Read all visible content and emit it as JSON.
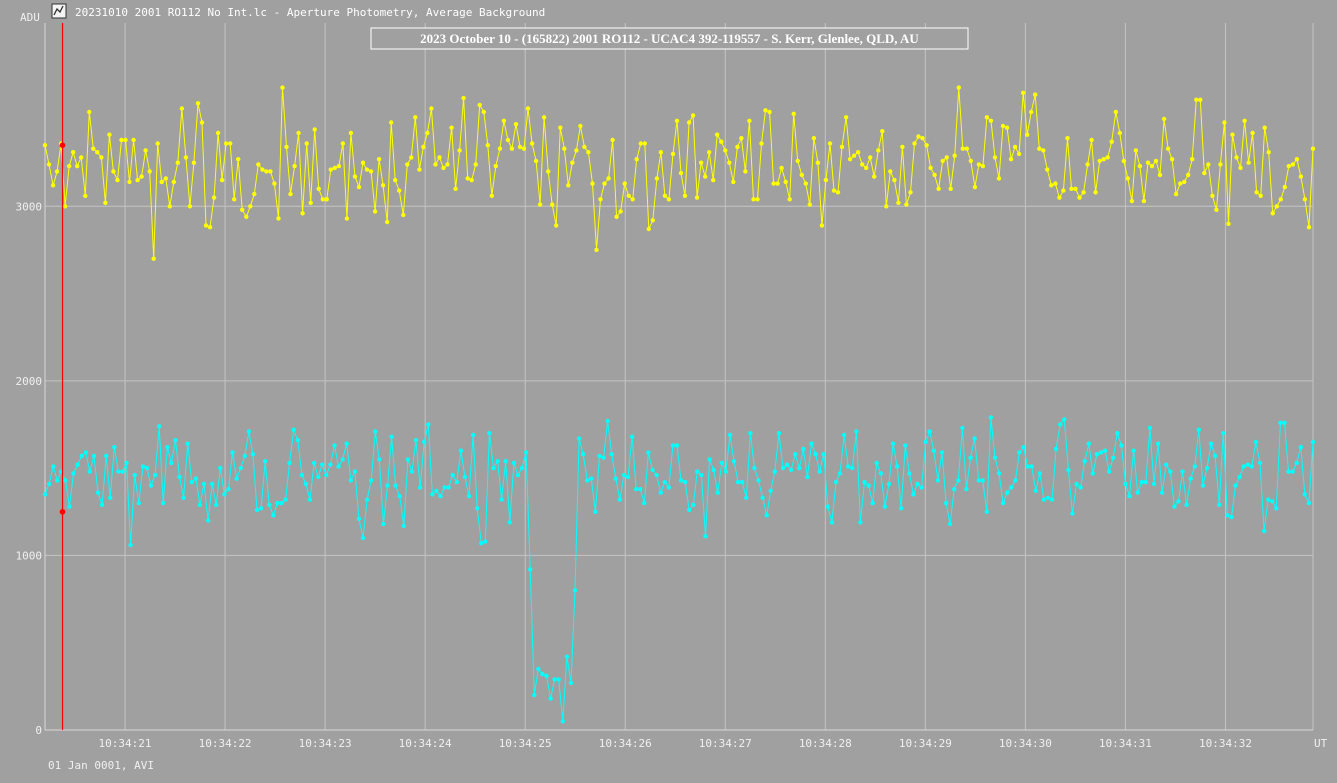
{
  "window": {
    "title": "20231010 2001 RO112 No Int.lc - Aperture Photometry, Average Background",
    "icon": "lightcurve-app-icon"
  },
  "footer_text": "01 Jan 0001, AVI",
  "colors": {
    "background": "#a0a0a0",
    "grid": "#c4c4c4",
    "series_comparison": "#ffff00",
    "series_target": "#00ffff",
    "cursor": "#ff0000",
    "text": "#f0f0f0"
  },
  "chart_data": {
    "type": "line",
    "title": "2023 October 10 - (165822) 2001 RO112 - UCAC4 392-119557 - S. Kerr, Glenlee, QLD, AU",
    "ylabel": "ADU",
    "xlabel": "UT",
    "ylim": [
      0,
      4050
    ],
    "yticks": [
      0,
      1000,
      2000,
      3000
    ],
    "xticks": [
      "10:34:21",
      "10:34:22",
      "10:34:23",
      "10:34:24",
      "10:34:25",
      "10:34:26",
      "10:34:27",
      "10:34:28",
      "10:34:29",
      "10:34:30",
      "10:34:31",
      "10:34:32"
    ],
    "x_start_seconds": 20.2,
    "x_end_seconds": 32.875,
    "tick_first_seconds": 21,
    "cursor_seconds": 20.375,
    "cursor_values": [
      3350,
      1250
    ],
    "grid": true,
    "series": [
      {
        "values": [
          3350,
          3240,
          3120,
          3200,
          3360,
          3000,
          3230,
          3310,
          3230,
          3280,
          3060,
          3540,
          3330,
          3310,
          3280,
          3020,
          3410,
          3200,
          3150,
          3380,
          3380,
          3140,
          3380,
          3150,
          3170,
          3320,
          3200,
          2700,
          3360,
          3140,
          3160,
          3000,
          3140,
          3250,
          3560,
          3280,
          3000,
          3250,
          3590,
          3480,
          2890,
          2880,
          3050,
          3420,
          3150,
          3360,
          3360,
          3040,
          3270,
          2980,
          2940,
          3000,
          3070,
          3240,
          3210,
          3200,
          3200,
          3130,
          2930,
          3680,
          3340,
          3070,
          3230,
          3420,
          2960,
          3360,
          3020,
          3440,
          3100,
          3040,
          3040,
          3210,
          3220,
          3230,
          3360,
          2930,
          3420,
          3170,
          3110,
          3250,
          3210,
          3200,
          2970,
          3270,
          3120,
          2910,
          3480,
          3150,
          3090,
          2950,
          3240,
          3280,
          3510,
          3210,
          3340,
          3420,
          3560,
          3240,
          3280,
          3220,
          3240,
          3450,
          3100,
          3320,
          3620,
          3160,
          3150,
          3240,
          3580,
          3540,
          3350,
          3060,
          3230,
          3330,
          3490,
          3380,
          3330,
          3470,
          3340,
          3330,
          3560,
          3360,
          3260,
          3010,
          3510,
          3200,
          3010,
          2890,
          3450,
          3330,
          3120,
          3250,
          3320,
          3460,
          3340,
          3310,
          3130,
          2750,
          3040,
          3130,
          3160,
          3380,
          2940,
          2970,
          3130,
          3060,
          3040,
          3270,
          3360,
          3360,
          2870,
          2920,
          3160,
          3310,
          3060,
          3040,
          3300,
          3490,
          3190,
          3060,
          3480,
          3520,
          3050,
          3250,
          3170,
          3310,
          3150,
          3410,
          3370,
          3320,
          3250,
          3140,
          3340,
          3390,
          3200,
          3490,
          3040,
          3040,
          3360,
          3550,
          3540,
          3130,
          3130,
          3220,
          3140,
          3040,
          3530,
          3260,
          3180,
          3130,
          3010,
          3390,
          3250,
          2890,
          3150,
          3360,
          3090,
          3080,
          3340,
          3510,
          3270,
          3290,
          3310,
          3240,
          3220,
          3280,
          3170,
          3320,
          3430,
          3000,
          3200,
          3150,
          3020,
          3340,
          3010,
          3080,
          3360,
          3400,
          3390,
          3350,
          3220,
          3180,
          3100,
          3260,
          3280,
          3100,
          3290,
          3680,
          3330,
          3330,
          3260,
          3110,
          3240,
          3230,
          3510,
          3490,
          3280,
          3160,
          3460,
          3450,
          3270,
          3340,
          3300,
          3650,
          3410,
          3540,
          3640,
          3330,
          3320,
          3210,
          3120,
          3130,
          3050,
          3090,
          3390,
          3100,
          3100,
          3050,
          3080,
          3240,
          3380,
          3080,
          3260,
          3270,
          3280,
          3370,
          3540,
          3420,
          3260,
          3160,
          3030,
          3320,
          3230,
          3030,
          3250,
          3230,
          3260,
          3180,
          3500,
          3330,
          3270,
          3070,
          3130,
          3140,
          3180,
          3270,
          3610,
          3610,
          3190,
          3240,
          3060,
          2980,
          3240,
          3480,
          2900,
          3410,
          3280,
          3220,
          3490,
          3250,
          3420,
          3080,
          3060,
          3450,
          3310,
          2960,
          3000,
          3040,
          3110,
          3230,
          3240,
          3270,
          3170,
          3040,
          2880,
          3330
        ]
      },
      {
        "values": [
          1350,
          1410,
          1510,
          1430,
          1480,
          1430,
          1280,
          1470,
          1520,
          1570,
          1590,
          1480,
          1570,
          1360,
          1290,
          1570,
          1330,
          1620,
          1480,
          1480,
          1530,
          1060,
          1460,
          1300,
          1510,
          1500,
          1400,
          1460,
          1740,
          1300,
          1620,
          1530,
          1660,
          1450,
          1330,
          1640,
          1420,
          1440,
          1290,
          1410,
          1200,
          1410,
          1290,
          1500,
          1350,
          1380,
          1590,
          1440,
          1500,
          1570,
          1710,
          1580,
          1260,
          1270,
          1540,
          1290,
          1230,
          1300,
          1300,
          1320,
          1530,
          1720,
          1660,
          1460,
          1410,
          1320,
          1530,
          1450,
          1520,
          1460,
          1520,
          1630,
          1510,
          1550,
          1640,
          1430,
          1480,
          1210,
          1100,
          1320,
          1430,
          1710,
          1550,
          1180,
          1400,
          1680,
          1400,
          1340,
          1170,
          1550,
          1480,
          1660,
          1390,
          1650,
          1750,
          1350,
          1370,
          1340,
          1390,
          1390,
          1460,
          1420,
          1600,
          1450,
          1340,
          1690,
          1270,
          1070,
          1080,
          1700,
          1500,
          1540,
          1320,
          1540,
          1190,
          1530,
          1460,
          1500,
          1590,
          920,
          200,
          350,
          320,
          310,
          180,
          290,
          290,
          50,
          420,
          270,
          800,
          1670,
          1580,
          1430,
          1440,
          1250,
          1570,
          1560,
          1770,
          1580,
          1440,
          1320,
          1460,
          1450,
          1680,
          1380,
          1380,
          1300,
          1590,
          1490,
          1460,
          1360,
          1420,
          1390,
          1630,
          1630,
          1430,
          1420,
          1260,
          1290,
          1480,
          1460,
          1110,
          1550,
          1490,
          1360,
          1530,
          1480,
          1690,
          1540,
          1420,
          1420,
          1330,
          1700,
          1500,
          1430,
          1330,
          1230,
          1370,
          1480,
          1700,
          1500,
          1520,
          1490,
          1580,
          1500,
          1610,
          1450,
          1640,
          1580,
          1480,
          1580,
          1280,
          1190,
          1420,
          1470,
          1690,
          1510,
          1500,
          1710,
          1190,
          1420,
          1400,
          1300,
          1530,
          1470,
          1280,
          1410,
          1640,
          1510,
          1270,
          1630,
          1470,
          1350,
          1410,
          1390,
          1650,
          1710,
          1600,
          1430,
          1590,
          1300,
          1180,
          1380,
          1430,
          1730,
          1380,
          1560,
          1670,
          1430,
          1430,
          1250,
          1790,
          1560,
          1470,
          1300,
          1360,
          1390,
          1430,
          1590,
          1620,
          1510,
          1510,
          1370,
          1470,
          1320,
          1330,
          1320,
          1610,
          1750,
          1780,
          1490,
          1240,
          1410,
          1390,
          1540,
          1640,
          1470,
          1580,
          1590,
          1600,
          1480,
          1560,
          1700,
          1630,
          1410,
          1340,
          1600,
          1360,
          1420,
          1420,
          1730,
          1410,
          1640,
          1360,
          1520,
          1480,
          1280,
          1310,
          1480,
          1290,
          1440,
          1510,
          1720,
          1400,
          1500,
          1640,
          1570,
          1290,
          1700,
          1230,
          1220,
          1400,
          1450,
          1510,
          1520,
          1510,
          1650,
          1530,
          1140,
          1320,
          1310,
          1270,
          1760,
          1760,
          1480,
          1480,
          1530,
          1620,
          1350,
          1300,
          1650
        ]
      }
    ]
  }
}
